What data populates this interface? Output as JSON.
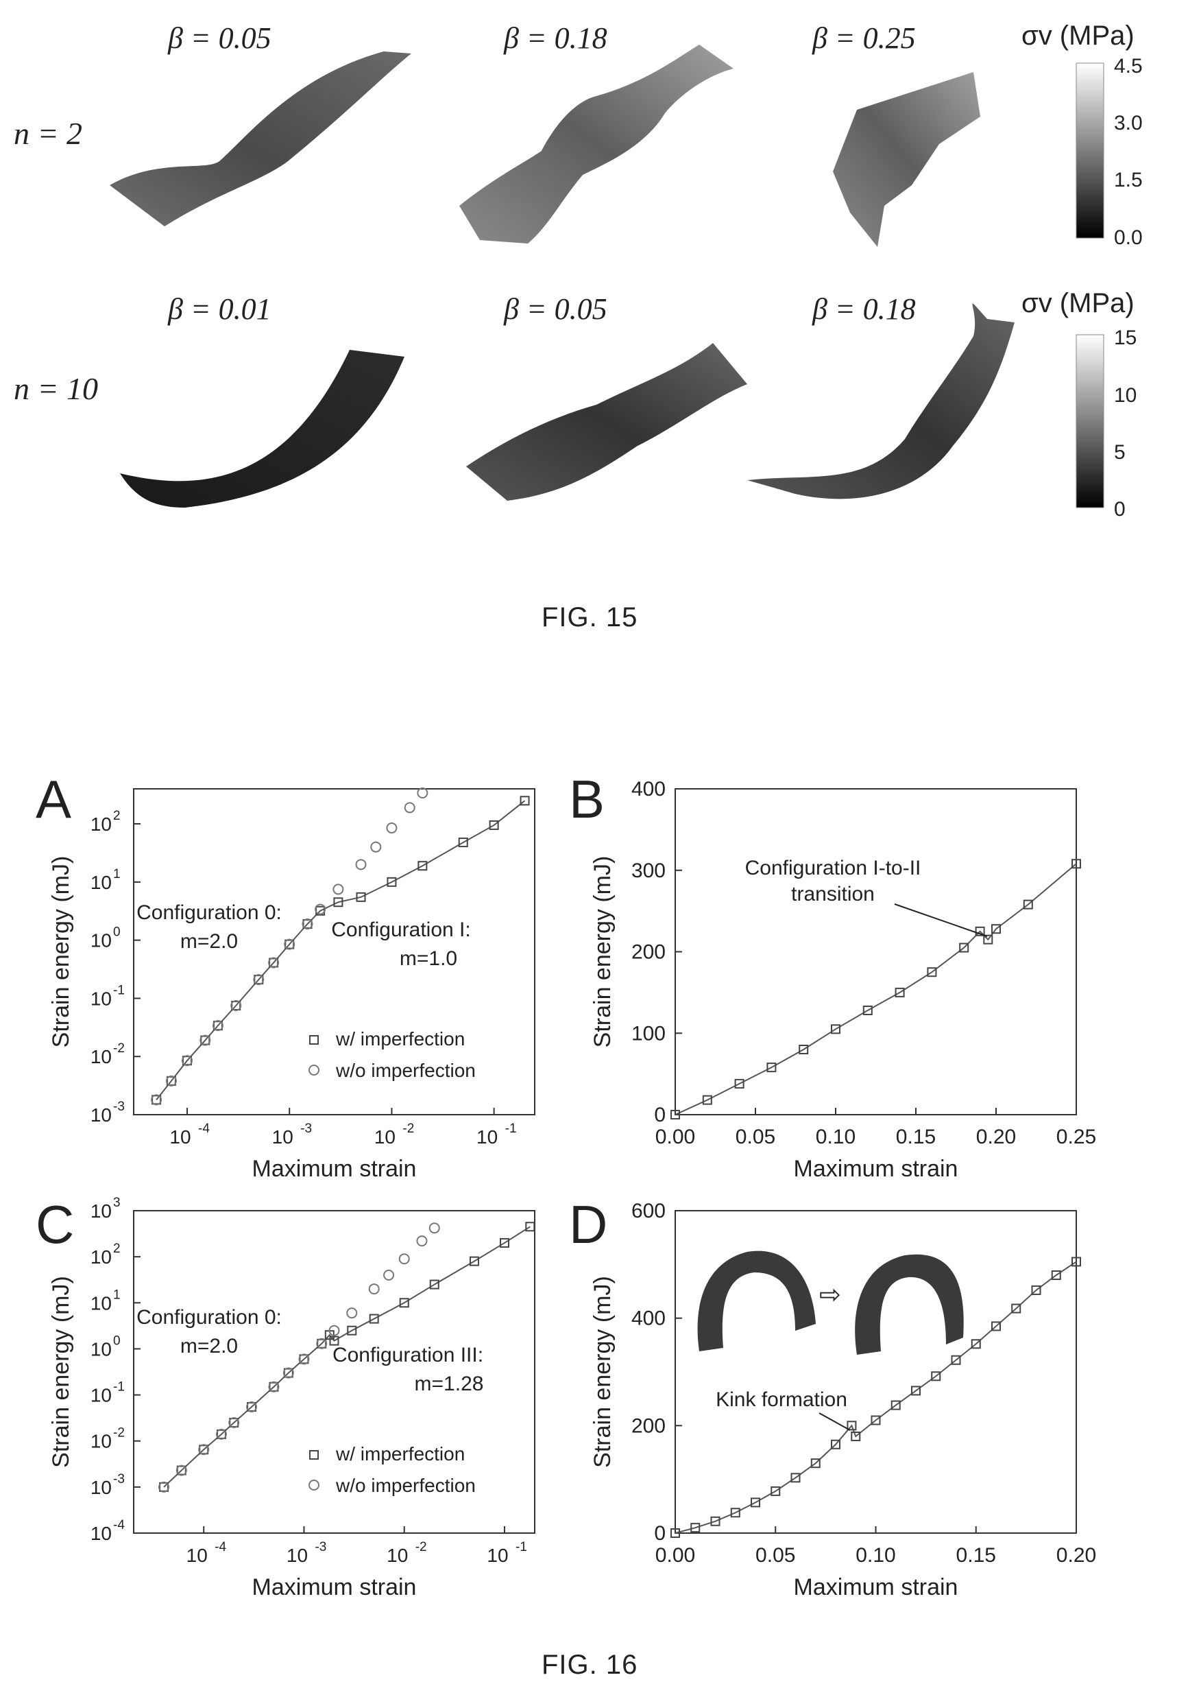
{
  "fig15": {
    "rows": [
      {
        "n_label": "n = 2",
        "betas": [
          "β = 0.05",
          "β = 0.18",
          "β = 0.25"
        ],
        "colorbar": {
          "title": "σv (MPa)",
          "ticks": [
            "4.5",
            "3.0",
            "1.5",
            "0.0"
          ]
        }
      },
      {
        "n_label": "n = 10",
        "betas": [
          "β = 0.01",
          "β = 0.05",
          "β = 0.18"
        ],
        "colorbar": {
          "title": "σv (MPa)",
          "ticks": [
            "15",
            "10",
            "5",
            "0"
          ]
        }
      }
    ],
    "caption": "FIG. 15"
  },
  "fig16": {
    "caption": "FIG. 16",
    "panels": {
      "A": {
        "letter": "A",
        "ylabel": "Strain energy (mJ)",
        "xlabel": "Maximum strain",
        "xticks": [
          "10",
          "10",
          "10",
          "10"
        ],
        "xtick_exps": [
          "-4",
          "-3",
          "-2",
          "-1"
        ],
        "yticks": [
          "10",
          "10",
          "10",
          "10",
          "10",
          "10"
        ],
        "ytick_exps": [
          "2",
          "1",
          "0",
          "-1",
          "-2",
          "-3"
        ],
        "ann_left_1": "Configuration 0:",
        "ann_left_2": "m=2.0",
        "ann_right_1": "Configuration I:",
        "ann_right_2": "m=1.0",
        "legend": [
          "w/ imperfection",
          "w/o imperfection"
        ]
      },
      "B": {
        "letter": "B",
        "ylabel": "Strain energy (mJ)",
        "xlabel": "Maximum strain",
        "xticks": [
          "0.00",
          "0.05",
          "0.10",
          "0.15",
          "0.20",
          "0.25"
        ],
        "yticks": [
          "400",
          "300",
          "200",
          "100",
          "0"
        ],
        "ann_1": "Configuration I-to-II",
        "ann_2": "transition"
      },
      "C": {
        "letter": "C",
        "ylabel": "Strain energy (mJ)",
        "xlabel": "Maximum strain",
        "xticks": [
          "10",
          "10",
          "10",
          "10"
        ],
        "xtick_exps": [
          "-4",
          "-3",
          "-2",
          "-1"
        ],
        "yticks": [
          "10",
          "10",
          "10",
          "10",
          "10",
          "10",
          "10",
          "10"
        ],
        "ytick_exps": [
          "3",
          "2",
          "1",
          "0",
          "-1",
          "-2",
          "-3",
          "-4"
        ],
        "ann_left_1": "Configuration 0:",
        "ann_left_2": "m=2.0",
        "ann_right_1": "Configuration III:",
        "ann_right_2": "m=1.28",
        "legend": [
          "w/ imperfection",
          "w/o imperfection"
        ]
      },
      "D": {
        "letter": "D",
        "ylabel": "Strain energy (mJ)",
        "xlabel": "Maximum strain",
        "xticks": [
          "0.00",
          "0.05",
          "0.10",
          "0.15",
          "0.20"
        ],
        "yticks": [
          "600",
          "400",
          "200",
          "0"
        ],
        "ann_1": "Kink formation"
      }
    }
  },
  "chart_data": [
    {
      "panel": "A",
      "type": "scatter",
      "xscale": "log",
      "yscale": "log",
      "xlabel": "Maximum strain",
      "ylabel": "Strain energy (mJ)",
      "xlim": [
        3e-05,
        0.25
      ],
      "ylim": [
        0.001,
        400
      ],
      "series": [
        {
          "name": "w/ imperfection",
          "x": [
            5e-05,
            7e-05,
            0.0001,
            0.00015,
            0.0002,
            0.0003,
            0.0005,
            0.0007,
            0.001,
            0.0015,
            0.002,
            0.003,
            0.005,
            0.01,
            0.02,
            0.05,
            0.1,
            0.2
          ],
          "y": [
            0.0018,
            0.0038,
            0.0085,
            0.019,
            0.034,
            0.075,
            0.21,
            0.41,
            0.85,
            1.9,
            3.2,
            4.5,
            5.5,
            10,
            19,
            48,
            95,
            250
          ]
        },
        {
          "name": "w/o imperfection",
          "x": [
            5e-05,
            7e-05,
            0.0001,
            0.00015,
            0.0002,
            0.0003,
            0.0005,
            0.0007,
            0.001,
            0.0015,
            0.002,
            0.003,
            0.005,
            0.007,
            0.01,
            0.015,
            0.02
          ],
          "y": [
            0.0018,
            0.0038,
            0.0085,
            0.019,
            0.034,
            0.075,
            0.21,
            0.41,
            0.85,
            1.9,
            3.4,
            7.5,
            20,
            40,
            85,
            190,
            340
          ]
        }
      ]
    },
    {
      "panel": "B",
      "type": "scatter",
      "xlabel": "Maximum strain",
      "ylabel": "Strain energy (mJ)",
      "xlim": [
        0,
        0.25
      ],
      "ylim": [
        0,
        400
      ],
      "series": [
        {
          "name": "",
          "x": [
            0,
            0.02,
            0.04,
            0.06,
            0.08,
            0.1,
            0.12,
            0.14,
            0.16,
            0.18,
            0.19,
            0.195,
            0.2,
            0.22,
            0.25
          ],
          "y": [
            0,
            18,
            38,
            58,
            80,
            105,
            128,
            150,
            175,
            205,
            225,
            215,
            228,
            258,
            308
          ]
        }
      ]
    },
    {
      "panel": "C",
      "type": "scatter",
      "xscale": "log",
      "yscale": "log",
      "xlabel": "Maximum strain",
      "ylabel": "Strain energy (mJ)",
      "xlim": [
        2e-05,
        0.2
      ],
      "ylim": [
        0.0001,
        1000
      ],
      "series": [
        {
          "name": "w/ imperfection",
          "x": [
            4e-05,
            6e-05,
            0.0001,
            0.00015,
            0.0002,
            0.0003,
            0.0005,
            0.0007,
            0.001,
            0.0015,
            0.0018,
            0.002,
            0.003,
            0.005,
            0.01,
            0.02,
            0.05,
            0.1,
            0.18
          ],
          "y": [
            0.001,
            0.0023,
            0.0065,
            0.014,
            0.025,
            0.055,
            0.15,
            0.3,
            0.6,
            1.3,
            2.0,
            1.5,
            2.5,
            4.5,
            10,
            25,
            80,
            200,
            450
          ]
        },
        {
          "name": "w/o imperfection",
          "x": [
            4e-05,
            6e-05,
            0.0001,
            0.00015,
            0.0002,
            0.0003,
            0.0005,
            0.0007,
            0.001,
            0.0015,
            0.002,
            0.003,
            0.005,
            0.007,
            0.01,
            0.015,
            0.02
          ],
          "y": [
            0.001,
            0.0023,
            0.0065,
            0.014,
            0.025,
            0.055,
            0.15,
            0.3,
            0.6,
            1.3,
            2.5,
            6,
            20,
            40,
            90,
            220,
            420
          ]
        }
      ]
    },
    {
      "panel": "D",
      "type": "scatter",
      "xlabel": "Maximum strain",
      "ylabel": "Strain energy (mJ)",
      "xlim": [
        0,
        0.2
      ],
      "ylim": [
        0,
        600
      ],
      "series": [
        {
          "name": "",
          "x": [
            0,
            0.01,
            0.02,
            0.03,
            0.04,
            0.05,
            0.06,
            0.07,
            0.08,
            0.088,
            0.09,
            0.1,
            0.11,
            0.12,
            0.13,
            0.14,
            0.15,
            0.16,
            0.17,
            0.18,
            0.19,
            0.2
          ],
          "y": [
            0,
            10,
            22,
            38,
            57,
            78,
            103,
            130,
            165,
            200,
            180,
            210,
            238,
            265,
            292,
            322,
            352,
            385,
            418,
            452,
            480,
            505
          ]
        }
      ]
    }
  ]
}
